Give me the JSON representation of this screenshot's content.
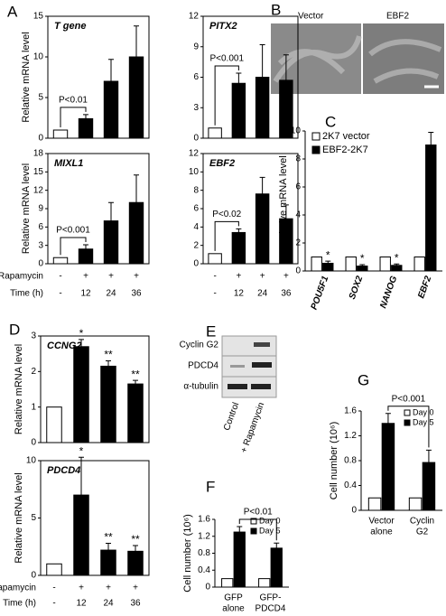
{
  "panel_labels": [
    "A",
    "B",
    "C",
    "D",
    "E",
    "F",
    "G"
  ],
  "panel_a_axis": {
    "rapamycin": "Rapamycin",
    "rapamycin_values": [
      "-",
      "+",
      "+",
      "+"
    ],
    "time": "Time (h)",
    "time_values": [
      "-",
      "12",
      "24",
      "36"
    ]
  },
  "panel_d_axis": {
    "rapamycin": "Rapamycin",
    "rapamycin_values": [
      "-",
      "+",
      "+",
      "+"
    ],
    "time": "Time (h)",
    "time_values": [
      "-",
      "12",
      "24",
      "36"
    ]
  },
  "panel_b": {
    "labels": [
      "Vector",
      "EBF2"
    ]
  },
  "panel_e": {
    "rows": [
      "Cyclin G2",
      "PDCD4",
      "α-tubulin"
    ],
    "lanes": [
      "Control",
      "+ Rapamycin"
    ]
  },
  "chart_data": [
    {
      "type": "bar",
      "title": "T gene",
      "ylabel": "Relative mRNA level",
      "ylim": [
        0,
        15
      ],
      "yticks": [
        0,
        5,
        10,
        15
      ],
      "frame": true,
      "annotation": "P<0.01",
      "series": [
        {
          "values": [
            1,
            2.4,
            7,
            10
          ],
          "errors": [
            null,
            0.5,
            2.7,
            3.8
          ],
          "colors": [
            "#ffffff",
            "#000000",
            "#000000",
            "#000000"
          ]
        }
      ]
    },
    {
      "type": "bar",
      "title": "PITX2",
      "ylim": [
        0,
        12
      ],
      "yticks": [
        0,
        3,
        6,
        9,
        12
      ],
      "frame": true,
      "annotation": "P<0.001",
      "series": [
        {
          "values": [
            1,
            5.4,
            6,
            5.7
          ],
          "errors": [
            null,
            1,
            3.2,
            2.5
          ],
          "colors": [
            "#ffffff",
            "#000000",
            "#000000",
            "#000000"
          ]
        }
      ]
    },
    {
      "type": "bar",
      "title": "MIXL1",
      "ylabel": "Relative mRNA level",
      "ylim": [
        0,
        18
      ],
      "yticks": [
        0,
        3,
        6,
        9,
        12,
        15,
        18
      ],
      "frame": true,
      "annotation": "P<0.001",
      "series": [
        {
          "values": [
            1,
            2.4,
            7,
            10
          ],
          "errors": [
            null,
            0.7,
            3,
            4.5
          ],
          "colors": [
            "#ffffff",
            "#000000",
            "#000000",
            "#000000"
          ]
        }
      ]
    },
    {
      "type": "bar",
      "title": "EBF2",
      "ylim": [
        0,
        12
      ],
      "yticks": [
        0,
        2,
        4,
        6,
        8,
        10,
        12
      ],
      "frame": true,
      "annotation": "P<0.02",
      "series": [
        {
          "values": [
            1.1,
            3.4,
            7.6,
            4.9
          ],
          "errors": [
            null,
            0.4,
            1.8,
            1.5
          ],
          "colors": [
            "#ffffff",
            "#000000",
            "#000000",
            "#000000"
          ]
        }
      ]
    },
    {
      "type": "bar",
      "ylabel": "Relative mRNA level",
      "ylim": [
        0,
        10
      ],
      "yticks": [
        0,
        2,
        4,
        6,
        8,
        10
      ],
      "frame": false,
      "legend": "top-left",
      "categories": [
        "POU5F1",
        "SOX2",
        "NANOG",
        "EBF2"
      ],
      "series": [
        {
          "name": "2K7 vector",
          "color": "#ffffff",
          "values": [
            1,
            1,
            1,
            1
          ]
        },
        {
          "name": "EBF2-2K7",
          "color": "#000000",
          "values": [
            0.55,
            0.35,
            0.4,
            9.0
          ],
          "errors": [
            0.15,
            0.1,
            0.1,
            0.9
          ],
          "significance": [
            "*",
            "*",
            "*",
            null
          ]
        }
      ]
    },
    {
      "type": "bar",
      "title": "CCNG2",
      "ylabel": "Relative mRNA level",
      "ylim": [
        0,
        3
      ],
      "yticks": [
        0,
        1,
        2,
        3
      ],
      "frame": true,
      "series": [
        {
          "values": [
            1,
            2.7,
            2.15,
            1.65
          ],
          "errors": [
            null,
            0.2,
            0.15,
            0.1
          ],
          "colors": [
            "#ffffff",
            "#000000",
            "#000000",
            "#000000"
          ],
          "significance": [
            null,
            "*",
            "**",
            "**"
          ]
        }
      ]
    },
    {
      "type": "bar",
      "title": "PDCD4",
      "ylabel": "Relative mRNA level",
      "ylim": [
        0,
        10
      ],
      "yticks": [
        0,
        5,
        10
      ],
      "frame": true,
      "series": [
        {
          "values": [
            1,
            7,
            2.2,
            2.1
          ],
          "errors": [
            null,
            3.3,
            0.6,
            0.5
          ],
          "colors": [
            "#ffffff",
            "#000000",
            "#000000",
            "#000000"
          ],
          "significance": [
            null,
            "*",
            "**",
            "**"
          ]
        }
      ]
    },
    {
      "type": "bar",
      "ylabel": "Cell number (10⁶)",
      "ylim": [
        0,
        1.6
      ],
      "yticks": [
        0,
        0.4,
        0.8,
        1.2,
        1.6
      ],
      "frame": false,
      "legend": "top-right",
      "annotation": "P<0.01",
      "categories": [
        [
          "GFP",
          "alone"
        ],
        [
          "GFP-",
          "PDCD4"
        ]
      ],
      "series": [
        {
          "name": "Day 0",
          "color": "#ffffff",
          "values": [
            0.2,
            0.2
          ]
        },
        {
          "name": "Day 5",
          "color": "#000000",
          "values": [
            1.3,
            0.92
          ],
          "errors": [
            0.13,
            0.12
          ]
        }
      ]
    },
    {
      "type": "bar",
      "ylabel": "Cell number (10⁶)",
      "ylim": [
        0,
        1.6
      ],
      "yticks": [
        0,
        0.4,
        0.8,
        1.2,
        1.6
      ],
      "frame": false,
      "legend": "top-right",
      "annotation": "P<0.001",
      "categories": [
        [
          "Vector",
          "alone"
        ],
        [
          "Cyclin",
          "G2"
        ]
      ],
      "series": [
        {
          "name": "Day 0",
          "color": "#ffffff",
          "values": [
            0.2,
            0.2
          ]
        },
        {
          "name": "Day 5",
          "color": "#000000",
          "values": [
            1.4,
            0.77
          ],
          "errors": [
            0.16,
            0.2
          ]
        }
      ]
    }
  ]
}
